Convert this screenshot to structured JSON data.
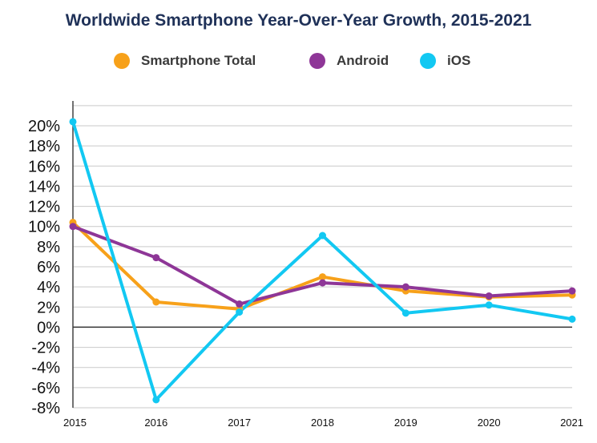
{
  "chart_data": {
    "type": "line",
    "title": "Worldwide Smartphone Year-Over-Year Growth, 2015-2021",
    "xlabel": "",
    "ylabel": "",
    "categories": [
      "2015",
      "2016",
      "2017",
      "2018",
      "2019",
      "2020",
      "2021"
    ],
    "y_ticks": [
      "20%",
      "18%",
      "16%",
      "14%",
      "12%",
      "10%",
      "8%",
      "6%",
      "4%",
      "2%",
      "0%",
      "-2%",
      "-4%",
      "-6%",
      "-8%"
    ],
    "ylim": [
      -8,
      22
    ],
    "grid": "horizontal",
    "legend_position": "top",
    "series": [
      {
        "name": "Smartphone Total",
        "color": "#f7a11a",
        "values": [
          10.4,
          2.5,
          1.8,
          5.0,
          3.6,
          3.0,
          3.2
        ]
      },
      {
        "name": "Android",
        "color": "#8e3697",
        "values": [
          10.0,
          6.9,
          2.3,
          4.4,
          4.0,
          3.1,
          3.6
        ]
      },
      {
        "name": "iOS",
        "color": "#12c8f2",
        "values": [
          20.4,
          -7.2,
          1.5,
          9.1,
          1.4,
          2.2,
          0.8
        ]
      }
    ]
  }
}
